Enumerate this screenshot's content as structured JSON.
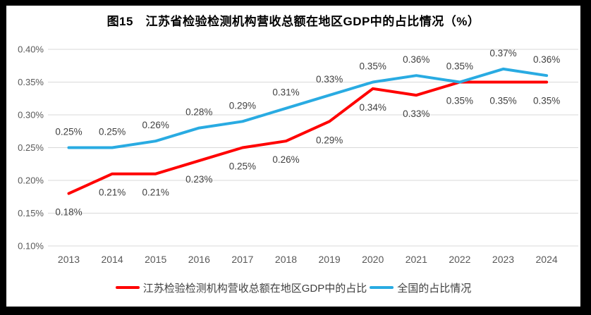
{
  "frame": {
    "border_color": "#000000",
    "canvas_background": "#FFFFFF"
  },
  "chart_data": {
    "type": "line",
    "title": "图15　江苏省检验检测机构营收总额在地区GDP中的占比情况（%）",
    "xlabel": "",
    "ylabel": "",
    "categories": [
      "2013",
      "2014",
      "2015",
      "2016",
      "2017",
      "2018",
      "2019",
      "2020",
      "2021",
      "2022",
      "2023",
      "2024"
    ],
    "ylim": [
      0.1,
      0.4
    ],
    "y_tick_step": 0.05,
    "y_ticks": [
      {
        "value": 0.1,
        "label": "0.10%"
      },
      {
        "value": 0.15,
        "label": "0.15%"
      },
      {
        "value": 0.2,
        "label": "0.20%"
      },
      {
        "value": 0.25,
        "label": "0.25%"
      },
      {
        "value": 0.3,
        "label": "0.30%"
      },
      {
        "value": 0.35,
        "label": "0.35%"
      },
      {
        "value": 0.4,
        "label": "0.40%"
      }
    ],
    "grid": "horizontal-only",
    "gridline_color": "#D9D9D9",
    "axis_text_color": "#595959",
    "data_label_color": "#404040",
    "legend_position": "bottom",
    "series": [
      {
        "name": "江苏检验检测机构营收总额在地区GDP中的占比",
        "color": "#FF0000",
        "label_position": "below",
        "values": [
          0.18,
          0.21,
          0.21,
          0.23,
          0.25,
          0.26,
          0.29,
          0.34,
          0.33,
          0.35,
          0.35,
          0.35
        ],
        "labels": [
          "0.18%",
          "0.21%",
          "0.21%",
          "0.23%",
          "0.25%",
          "0.26%",
          "0.29%",
          "0.34%",
          "0.33%",
          "0.35%",
          "0.35%",
          "0.35%"
        ]
      },
      {
        "name": "全国的占比情况",
        "color": "#29ABE2",
        "label_position": "above",
        "values": [
          0.25,
          0.25,
          0.26,
          0.28,
          0.29,
          0.31,
          0.33,
          0.35,
          0.36,
          0.35,
          0.37,
          0.36
        ],
        "labels": [
          "0.25%",
          "0.25%",
          "0.26%",
          "0.28%",
          "0.29%",
          "0.31%",
          "0.33%",
          "0.35%",
          "0.36%",
          "0.35%",
          "0.37%",
          "0.36%"
        ]
      }
    ]
  }
}
